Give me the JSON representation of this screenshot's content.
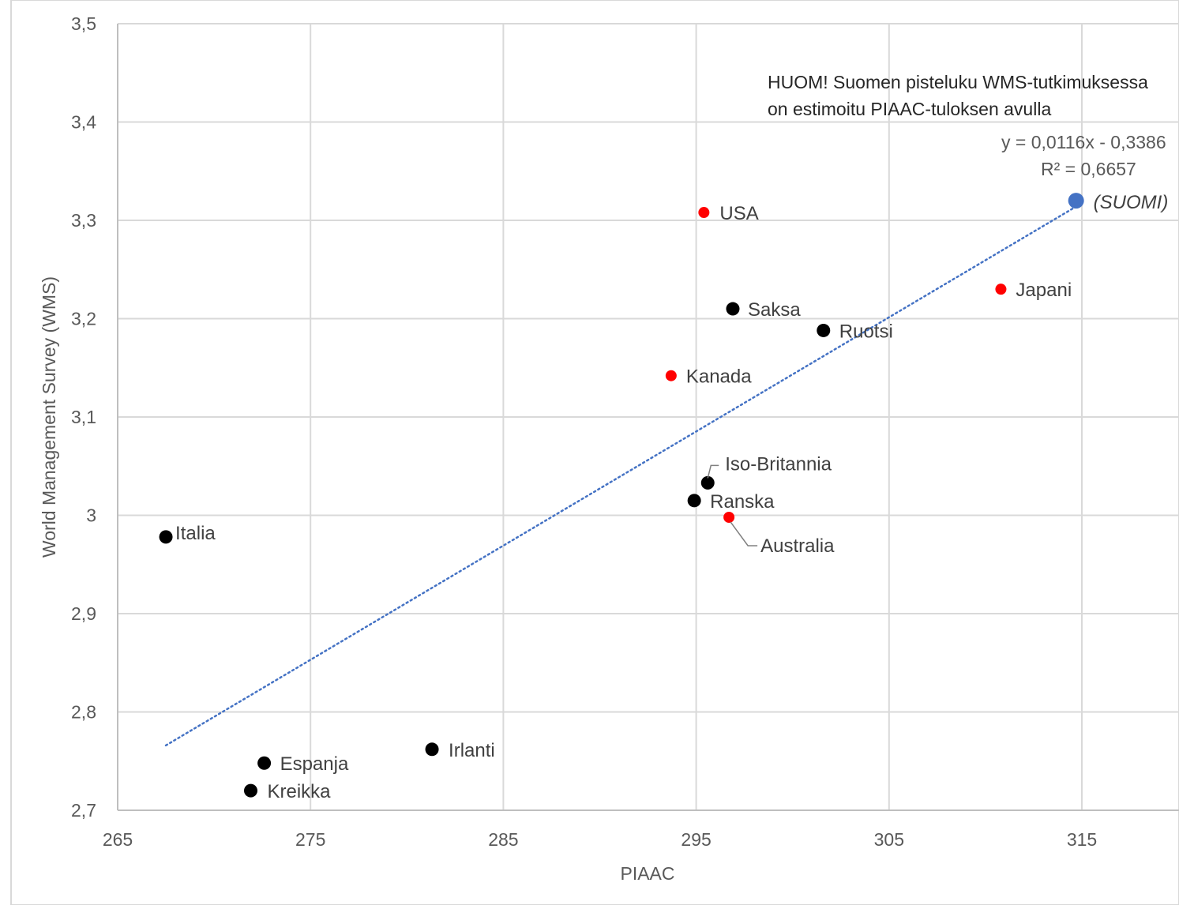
{
  "chart_data": {
    "type": "scatter",
    "title": "",
    "xlabel": "PIAAC",
    "ylabel": "World Management Survey (WMS)",
    "xlim": [
      265,
      320
    ],
    "ylim": [
      2.7,
      3.5
    ],
    "x_ticks": [
      "265",
      "275",
      "285",
      "295",
      "305",
      "315"
    ],
    "y_ticks": [
      "2,7",
      "2,8",
      "2,9",
      "3",
      "3,1",
      "3,2",
      "3,3",
      "3,4",
      "3,5"
    ],
    "grid": true,
    "points": [
      {
        "label": "Italia",
        "x": 267.5,
        "y": 2.978,
        "color": "#000000"
      },
      {
        "label": "Espanja",
        "x": 272.6,
        "y": 2.748,
        "color": "#000000"
      },
      {
        "label": "Kreikka",
        "x": 271.9,
        "y": 2.72,
        "color": "#000000"
      },
      {
        "label": "Irlanti",
        "x": 281.3,
        "y": 2.762,
        "color": "#000000"
      },
      {
        "label": "USA",
        "x": 295.4,
        "y": 3.308,
        "color": "#ff0000"
      },
      {
        "label": "Saksa",
        "x": 296.9,
        "y": 3.21,
        "color": "#000000"
      },
      {
        "label": "Ruotsi",
        "x": 301.6,
        "y": 3.188,
        "color": "#000000"
      },
      {
        "label": "Kanada",
        "x": 293.7,
        "y": 3.142,
        "color": "#ff0000"
      },
      {
        "label": "Iso-Britannia",
        "x": 295.6,
        "y": 3.033,
        "color": "#000000"
      },
      {
        "label": "Ranska",
        "x": 294.9,
        "y": 3.015,
        "color": "#000000"
      },
      {
        "label": "Australia",
        "x": 296.7,
        "y": 2.998,
        "color": "#ff0000"
      },
      {
        "label": "Japani",
        "x": 310.8,
        "y": 3.23,
        "color": "#ff0000"
      },
      {
        "label": "(SUOMI)",
        "x": 314.7,
        "y": 3.32,
        "color": "#4472c4"
      }
    ],
    "trendline": {
      "x": [
        267.5,
        314.7
      ],
      "y": [
        2.766,
        3.314
      ],
      "equation": "y = 0,0116x - 0,3386",
      "r2": "R² = 0,6657",
      "color": "#4472c4",
      "style": "dotted"
    },
    "annotation": {
      "line1": "HUOM! Suomen pisteluku WMS-tutkimuksessa",
      "line2": "on estimoitu PIAAC-tuloksen avulla"
    }
  }
}
